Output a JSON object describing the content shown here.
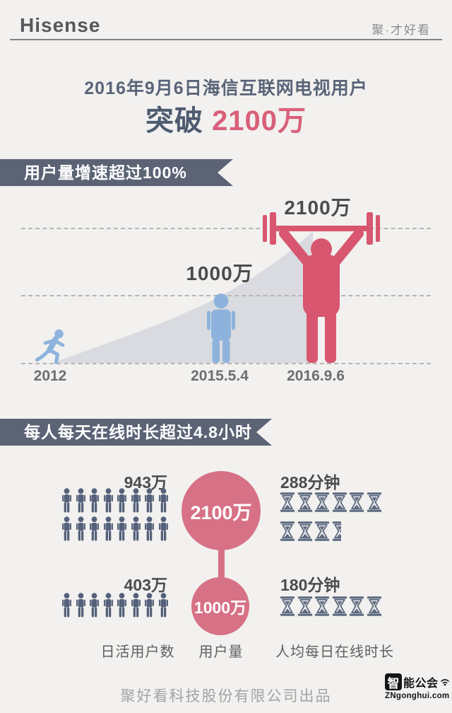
{
  "header": {
    "brand": "Hisense",
    "slogan": "聚·才好看"
  },
  "title": {
    "line1": "2016年9月6日海信互联网电视用户",
    "highlight_prefix": "突破",
    "highlight_value": "2100万"
  },
  "growth_section": {
    "banner": "用户量增速超过100%",
    "milestones": [
      {
        "date": "2012",
        "label": ""
      },
      {
        "date": "2015.5.4",
        "label": "1000万"
      },
      {
        "date": "2016.9.6",
        "label": "2100万"
      }
    ]
  },
  "usage_section": {
    "banner": "每人每天在线时长超过4.8小时",
    "rows": [
      {
        "daily_active": "943万",
        "person_rows": [
          8,
          8
        ],
        "total_users": "2100万",
        "minutes": "288分钟",
        "hourglass_rows": [
          6,
          3.6
        ]
      },
      {
        "daily_active": "403万",
        "person_rows": [
          8
        ],
        "total_users": "1000万",
        "minutes": "180分钟",
        "hourglass_rows": [
          6
        ]
      }
    ],
    "columns": {
      "left": "日活用户数",
      "middle": "用户量",
      "right": "人均每日在线时长"
    }
  },
  "footer": {
    "credit": "聚好看科技股份有限公司出品",
    "logo_char": "智",
    "logo_rest": "能公会",
    "logo_url": "ZNgonghui.com"
  },
  "colors": {
    "background": "#f2f1ef",
    "banner_slate": "#5b6375",
    "icon_slate": "#55617a",
    "hourglass_slate": "#5d6a80",
    "accent_pink": "#d77186",
    "accent_red": "#d8566f",
    "figure_blue": "#8db3dd",
    "wedge_gray": "#d9dbe0"
  },
  "chart_data": [
    {
      "type": "area",
      "title": "用户量增速超过100%",
      "x": [
        "2012",
        "2015.5.4",
        "2016.9.6"
      ],
      "y_wan": [
        0,
        1000,
        2100
      ],
      "point_labels": [
        "",
        "1000万",
        "2100万"
      ],
      "unit": "万",
      "ylabel": "用户量",
      "grid": "three dashed horizontal gridlines",
      "legend": "none"
    },
    {
      "type": "pictograph",
      "title": "每人每天在线时长超过4.8小时",
      "categories": [
        "2016.9.6",
        "2015.5.4"
      ],
      "series": [
        {
          "name": "日活用户数",
          "values": [
            "943万",
            "403万"
          ],
          "icon": "person",
          "icon_counts": [
            16,
            8
          ]
        },
        {
          "name": "用户量",
          "values": [
            "2100万",
            "1000万"
          ],
          "icon": "circle"
        },
        {
          "name": "人均每日在线时长",
          "values": [
            "288分钟",
            "180分钟"
          ],
          "icon": "hourglass",
          "icon_counts": [
            9.6,
            6
          ]
        }
      ],
      "legend": "none"
    }
  ]
}
